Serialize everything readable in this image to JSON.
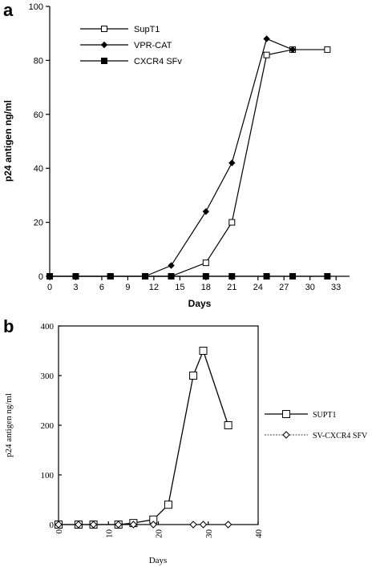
{
  "chart_data": [
    {
      "panel": "a",
      "type": "line",
      "xlabel": "Days",
      "ylabel": "p24 antigen ng/ml",
      "xlim": [
        0,
        34
      ],
      "ylim": [
        0,
        100
      ],
      "xticks": [
        0,
        3,
        6,
        9,
        12,
        15,
        18,
        21,
        24,
        27,
        30,
        33
      ],
      "yticks": [
        0,
        20,
        40,
        60,
        80,
        100
      ],
      "grid": false,
      "legend_position": "top-center",
      "series": [
        {
          "name": "SupT1",
          "marker": "open-square",
          "x": [
            0,
            3,
            7,
            11,
            14,
            18,
            21,
            25,
            28,
            32
          ],
          "y": [
            0,
            0,
            0,
            0,
            0,
            5,
            20,
            82,
            84,
            84
          ]
        },
        {
          "name": "VPR-CAT",
          "marker": "filled-diamond",
          "x": [
            11,
            14,
            18,
            21,
            25,
            28
          ],
          "y": [
            0,
            4,
            24,
            42,
            88,
            84
          ]
        },
        {
          "name": "CXCR4 SFv",
          "marker": "filled-square",
          "x": [
            0,
            3,
            7,
            11,
            14,
            18,
            21,
            25,
            28,
            32
          ],
          "y": [
            0,
            0,
            0,
            0,
            0,
            0,
            0,
            0,
            0,
            0
          ]
        }
      ]
    },
    {
      "panel": "b",
      "type": "line",
      "xlabel": "Days",
      "ylabel": "p24 antigen ng/ml",
      "xlim": [
        0,
        40
      ],
      "ylim": [
        0,
        400
      ],
      "xticks": [
        0,
        10,
        20,
        30,
        40
      ],
      "yticks": [
        0,
        100,
        200,
        300,
        400
      ],
      "grid": false,
      "legend_position": "right",
      "series": [
        {
          "name": "SUPT1",
          "marker": "open-square",
          "x": [
            0,
            4,
            7,
            12,
            15,
            19,
            22,
            27,
            29,
            34
          ],
          "y": [
            0,
            0,
            0,
            0,
            3,
            10,
            40,
            300,
            350,
            200
          ]
        },
        {
          "name": "SV-CXCR4 SFV",
          "marker": "open-diamond",
          "x": [
            0,
            4,
            7,
            12,
            15,
            19,
            27,
            29,
            34
          ],
          "y": [
            0,
            0,
            0,
            0,
            0,
            0,
            0,
            0,
            0
          ]
        }
      ]
    }
  ]
}
